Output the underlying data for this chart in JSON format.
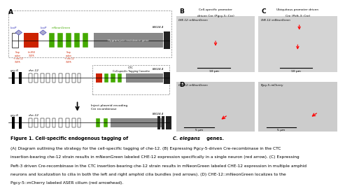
{
  "panel_A_label": "A",
  "panel_B_label": "B",
  "panel_C_label": "C",
  "panel_D_label": "D",
  "panel_B_title1": "Cell-specific promoter",
  "panel_B_title2": "driven Cre (Pgcy-5::Cre)",
  "panel_C_title1": "Ubiquitous promoter driven",
  "panel_C_title2": "Cre (Peft-3::Cre)",
  "panel_B_label_img": "CHE-12::mNeonGreen",
  "panel_C_label_img": "CHE-12::mNeonGreen",
  "panel_D1_label_img": "CHE-12::mNeonGreen",
  "panel_D2_label_img": "Pgcy-5::mCherry",
  "scale_B": "10 μm",
  "scale_C": "10 μm",
  "scale_D1": "5 μm",
  "scale_D2": "5 μm",
  "bg_color": "#ffffff",
  "micro_bg": "#e0e0e0",
  "loxp_color": "#3333bb",
  "stop_codon_color": "#cc2200",
  "mNeonGreen_color": "#44aa00",
  "red_element_color": "#cc2200",
  "arrow_color": "#cc0000",
  "caption_title": "Figure 1. Cell-specific endogenous tagging of C. elegans genes.",
  "caption_body": "(A) Diagram outlining the strategy for the cell-specific tagging of che-12. (B) Expressing Pgcy-5-driven Cre-recombinase in the CTC insertion-bearing che-12 strain results in mNeonGreen labeled CHE-12 expression specifically in a single neuron (red arrow). (C) Expressing Peft-3 driven Cre-recombinase in the CTC insertion-bearing che-12 strain results in mNeonGreen labeled CHE-12 expression in multiple amphid neurons and localization to cilia in both the left and right amphid cilia bundles (red arrows). (D) CHE-12::mNeonGreen localizes to the Pgcy-5::mCherry labeled ASER cilium (red arrowhead)."
}
